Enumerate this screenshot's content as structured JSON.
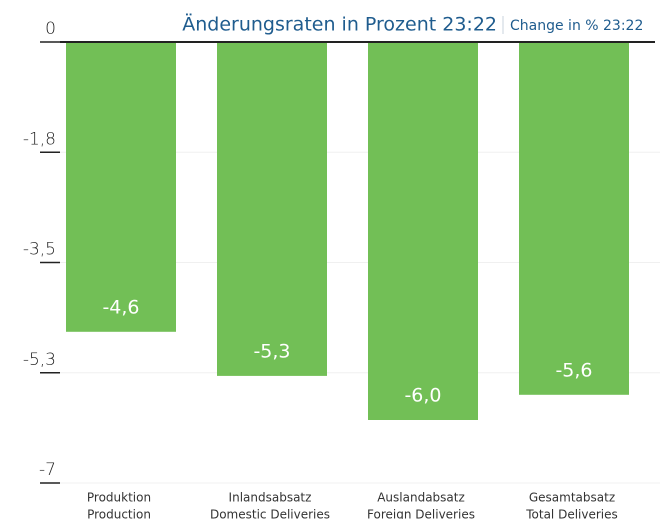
{
  "chart_data": {
    "type": "bar",
    "title": "Änderungsraten in Prozent 23:22",
    "subtitle": "Change in % 23:22",
    "categories": [
      [
        "Produktion",
        "Production"
      ],
      [
        "Inlandsabsatz",
        "Domestic Deliveries"
      ],
      [
        "Auslandabsatz",
        "Foreign Deliveries"
      ],
      [
        "Gesamtabsatz",
        "Total Deliveries"
      ]
    ],
    "values": [
      -4.6,
      -5.3,
      -6.0,
      -5.6
    ],
    "value_labels": [
      "-4,6",
      "-5,3",
      "-6,0",
      "-5,6"
    ],
    "color": "#72bf56",
    "ylim": [
      0,
      -7
    ],
    "yticks": [
      0,
      {
        "value": -1.75,
        "label": "-1,8"
      },
      {
        "value": -3.5,
        "label": "-3,5"
      },
      {
        "value": -5.25,
        "label": "-5,3"
      },
      -7
    ],
    "grid": true
  }
}
